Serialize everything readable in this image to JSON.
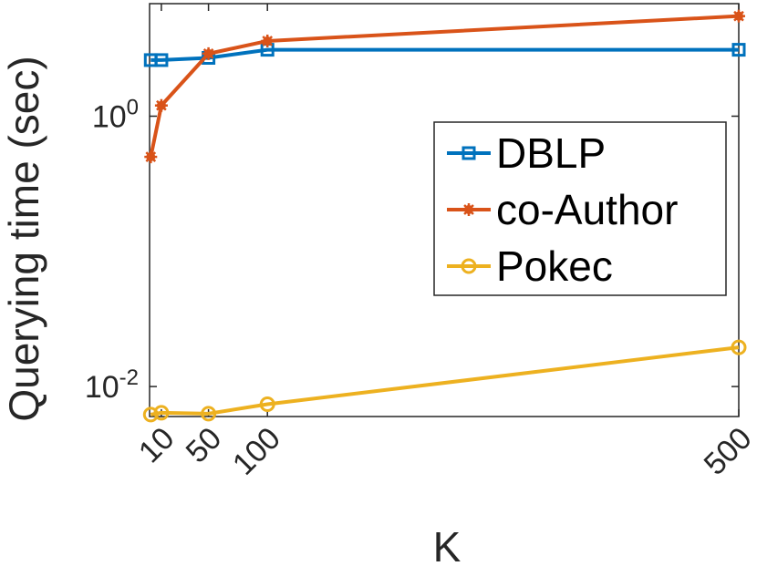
{
  "chart_data": {
    "type": "line",
    "xlabel": "K",
    "ylabel": "Querying time (sec)",
    "yscale": "log",
    "xlim": [
      0,
      500
    ],
    "ylim": [
      0.006,
      6.8
    ],
    "x_ticks": [
      10,
      50,
      100,
      500
    ],
    "x_tick_labels": [
      "10",
      "50",
      "100",
      "500"
    ],
    "y_ticks": [
      {
        "value": 0.01,
        "base": "10",
        "exp": "-2"
      },
      {
        "value": 1,
        "base": "10",
        "exp": "0"
      }
    ],
    "grid": false,
    "legend_position": "right",
    "series": [
      {
        "name": "DBLP",
        "color": "#0072BD",
        "marker": "square",
        "x": [
          1,
          10,
          50,
          100,
          500
        ],
        "y": [
          2.6,
          2.6,
          2.7,
          3.1,
          3.1
        ]
      },
      {
        "name": "co-Author",
        "color": "#D95319",
        "marker": "asterisk",
        "x": [
          1,
          10,
          50,
          100,
          500
        ],
        "y": [
          0.5,
          1.2,
          2.9,
          3.6,
          5.5
        ]
      },
      {
        "name": "Pokec",
        "color": "#EDB120",
        "marker": "circle",
        "x": [
          1,
          10,
          50,
          100,
          500
        ],
        "y": [
          0.0062,
          0.0064,
          0.0063,
          0.0074,
          0.0195
        ]
      }
    ]
  }
}
